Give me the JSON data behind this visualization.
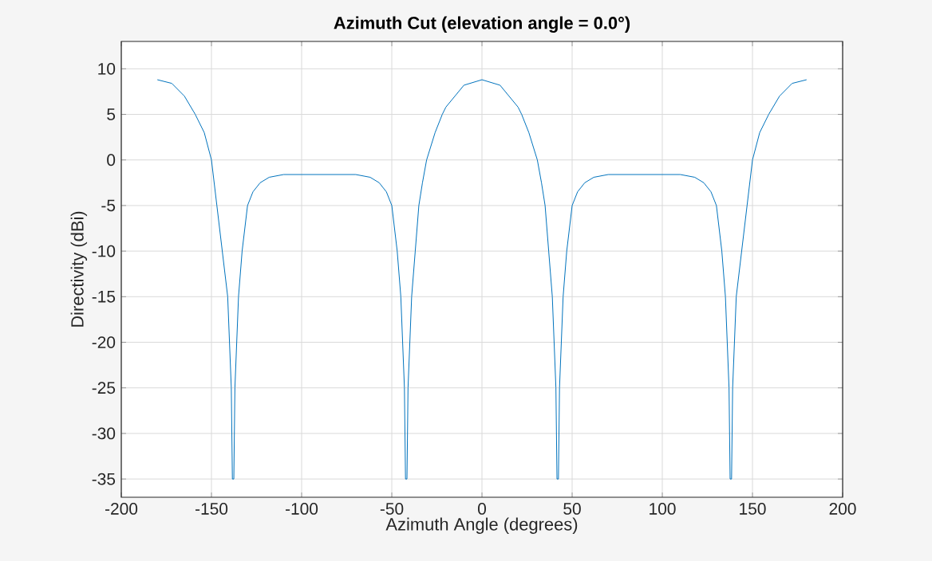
{
  "chart_data": {
    "type": "line",
    "title": "Azimuth Cut (elevation angle = 0.0°)",
    "xlabel": "Azimuth Angle (degrees)",
    "ylabel": "Directivity (dBi)",
    "x": [
      -180,
      -172,
      -165,
      -159,
      -154,
      -150,
      -147,
      -144,
      -141,
      -139,
      -138.4,
      -138,
      -137.6,
      -137,
      -135,
      -133,
      -130,
      -127,
      -123,
      -118,
      -110,
      -90,
      -70,
      -62,
      -57,
      -53,
      -50,
      -47,
      -45,
      -43,
      -42.4,
      -42,
      -41.6,
      -41,
      -39,
      -37,
      -35,
      -33,
      -30.7,
      -26,
      -22,
      -20,
      -10,
      0,
      10,
      20,
      22,
      26,
      30.7,
      33,
      35,
      37,
      39,
      41,
      41.6,
      42,
      42.4,
      43,
      45,
      47,
      50,
      53,
      57,
      62,
      70,
      90,
      110,
      118,
      123,
      127,
      130,
      133,
      135,
      137,
      137.6,
      138,
      138.4,
      139,
      141,
      144,
      147,
      150,
      154,
      159,
      165,
      172,
      180
    ],
    "series": [
      {
        "color": "#0072bd",
        "values": [
          8.8,
          8.4,
          7,
          5,
          3,
          0,
          -5,
          -10,
          -15,
          -25,
          -35,
          null,
          -35,
          -25,
          -15,
          -10,
          -5,
          -3.5,
          -2.5,
          -1.9,
          -1.6,
          -1.6,
          -1.6,
          -1.9,
          -2.5,
          -3.5,
          -5,
          -10,
          -15,
          -25,
          -35,
          null,
          -35,
          -25,
          -15,
          -10,
          -5,
          -2.5,
          0,
          3,
          5,
          5.8,
          8.2,
          8.8,
          8.2,
          5.8,
          5,
          3,
          0,
          -2.5,
          -5,
          -10,
          -15,
          -25,
          -35,
          null,
          -35,
          -25,
          -15,
          -10,
          -5,
          -3.5,
          -2.5,
          -1.9,
          -1.6,
          -1.6,
          -1.6,
          -1.9,
          -2.5,
          -3.5,
          -5,
          -10,
          -15,
          -25,
          -35,
          null,
          -35,
          -25,
          -15,
          -10,
          -5,
          0,
          3,
          5,
          7,
          8.4,
          8.8
        ]
      }
    ],
    "xlim": [
      -200,
      200
    ],
    "ylim": [
      -37,
      13
    ],
    "xticks": [
      -200,
      -150,
      -100,
      -50,
      0,
      50,
      100,
      150,
      200
    ],
    "yticks": [
      -35,
      -30,
      -25,
      -20,
      -15,
      -10,
      -5,
      0,
      5,
      10
    ],
    "grid": true,
    "marker": "none",
    "line_style": "solid"
  }
}
